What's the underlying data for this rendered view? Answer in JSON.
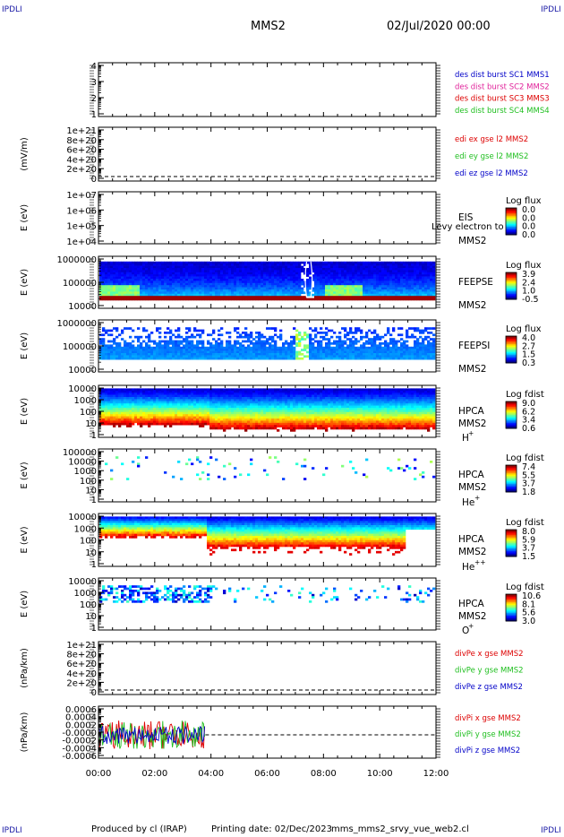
{
  "corner_tag": "IPDLI",
  "header": {
    "spacecraft": "MMS2",
    "date": "02/Jul/2020 00:00"
  },
  "footer": {
    "produced_by": "Produced by cl (IRAP)",
    "printing_date": "Printing date: 02/Dec/2023",
    "script": "mms_mms2_srvy_vue_web2.cl"
  },
  "colors": {
    "mms1": "#0000c8",
    "mms2": "#e0229a",
    "mms3": "#dd0000",
    "mms4": "#1fbf1f",
    "x": "#dd0000",
    "y": "#1fbf1f",
    "z": "#0000c8",
    "dashed": "#000000"
  },
  "chart_data": {
    "type": "heatmap",
    "x_ticks": [
      "00:00",
      "02:00",
      "04:00",
      "06:00",
      "08:00",
      "10:00",
      "12:00"
    ],
    "x_range_hours": [
      0,
      12
    ],
    "panels": [
      {
        "id": "burst",
        "type": "line",
        "ytick_labels": [
          "1",
          "2",
          "3",
          "4"
        ],
        "ylim": [
          0.6,
          4.4
        ],
        "legend": [
          {
            "text": "des dist burst SC1 MMS1",
            "color": "mms1"
          },
          {
            "text": "des dist burst SC2 MMS2",
            "color": "mms2"
          },
          {
            "text": "des dist burst SC3 MMS3",
            "color": "mms3"
          },
          {
            "text": "des dist burst SC4 MMS4",
            "color": "mms4"
          }
        ]
      },
      {
        "id": "edi",
        "type": "line",
        "ylabel": "(mV/m)",
        "ytick_labels": [
          "0",
          "2e+20",
          "4e+20",
          "6e+20",
          "8e+20",
          "1e+21"
        ],
        "dashed_zero": true,
        "legend": [
          {
            "text": "edi ex gse l2 MMS2",
            "color": "x"
          },
          {
            "text": "edi ey gse l2 MMS2",
            "color": "y"
          },
          {
            "text": "edi ez gse l2 MMS2",
            "color": "z"
          }
        ]
      },
      {
        "id": "eis",
        "type": "heatmap",
        "ylabel": "E (eV)",
        "ytick_labels": [
          "1e+04",
          "1e+05",
          "1e+06",
          "1e+07"
        ],
        "instrument": "EIS",
        "overlay_text": "Levy electron to",
        "sc": "MMS2",
        "colorbar": {
          "title": "Log flux",
          "labels": [
            "0.0",
            "0.0",
            "0.0",
            "0.0"
          ]
        }
      },
      {
        "id": "feepse",
        "type": "heatmap",
        "ylabel": "E (eV)",
        "ytick_labels": [
          "10000",
          "100000",
          "1000000"
        ],
        "instrument": "FEEPSE",
        "sc": "MMS2",
        "colorbar": {
          "title": "Log flux",
          "labels": [
            "3.9",
            "2.4",
            "1.0",
            "-0.5"
          ]
        }
      },
      {
        "id": "feepsi",
        "type": "heatmap",
        "ylabel": "E (eV)",
        "ytick_labels": [
          "10000",
          "100000",
          "1000000"
        ],
        "instrument": "FEEPSI",
        "sc": "MMS2",
        "colorbar": {
          "title": "Log flux",
          "labels": [
            "4.0",
            "2.7",
            "1.5",
            "0.3"
          ]
        }
      },
      {
        "id": "hpca_h",
        "type": "heatmap",
        "ylabel": "E (eV)",
        "ytick_labels": [
          "1",
          "10",
          "100",
          "1000",
          "10000"
        ],
        "instrument": "HPCA",
        "sc": "MMS2",
        "species": "H",
        "species_sup": "+",
        "colorbar": {
          "title": "Log fdist",
          "labels": [
            "9.0",
            "6.2",
            "3.4",
            "0.6"
          ]
        }
      },
      {
        "id": "hpca_he",
        "type": "heatmap",
        "ylabel": "E (eV)",
        "ytick_labels": [
          "1",
          "10",
          "100",
          "1000",
          "10000",
          "100000"
        ],
        "instrument": "HPCA",
        "sc": "MMS2",
        "species": "He",
        "species_sup": "+",
        "colorbar": {
          "title": "Log fdist",
          "labels": [
            "7.4",
            "5.5",
            "3.7",
            "1.8"
          ]
        }
      },
      {
        "id": "hpca_hepp",
        "type": "heatmap",
        "ylabel": "E (eV)",
        "ytick_labels": [
          "1",
          "10",
          "100",
          "1000",
          "10000"
        ],
        "instrument": "HPCA",
        "sc": "MMS2",
        "species": "He",
        "species_sup": "++",
        "colorbar": {
          "title": "Log fdist",
          "labels": [
            "8.0",
            "5.9",
            "3.7",
            "1.5"
          ]
        }
      },
      {
        "id": "hpca_o",
        "type": "heatmap",
        "ylabel": "E (eV)",
        "ytick_labels": [
          "1",
          "10",
          "100",
          "1000",
          "10000"
        ],
        "instrument": "HPCA",
        "sc": "MMS2",
        "species": "O",
        "species_sup": "+",
        "colorbar": {
          "title": "Log fdist",
          "labels": [
            "10.6",
            "8.1",
            "5.6",
            "3.0"
          ]
        }
      },
      {
        "id": "divpe",
        "type": "line",
        "ylabel": "(nPa/km)",
        "ytick_labels": [
          "0",
          "2e+20",
          "4e+20",
          "6e+20",
          "8e+20",
          "1e+21"
        ],
        "dashed_zero": true,
        "legend": [
          {
            "text": "divPe x gse MMS2",
            "color": "x"
          },
          {
            "text": "divPe y gse MMS2",
            "color": "y"
          },
          {
            "text": "divPe z gse MMS2",
            "color": "z"
          }
        ]
      },
      {
        "id": "divpi",
        "type": "line",
        "ylabel": "(nPa/km)",
        "ytick_labels": [
          "-0.0006",
          "-0.0004",
          "-0.0002",
          "-0.0000",
          "0.0002",
          "0.0004",
          "0.0006"
        ],
        "ylim": [
          -0.0006,
          0.0006
        ],
        "data_end_hour": 3.8,
        "legend": [
          {
            "text": "divPi x gse MMS2",
            "color": "x"
          },
          {
            "text": "divPi y gse MMS2",
            "color": "y"
          },
          {
            "text": "divPi z gse MMS2",
            "color": "z"
          }
        ]
      }
    ]
  }
}
